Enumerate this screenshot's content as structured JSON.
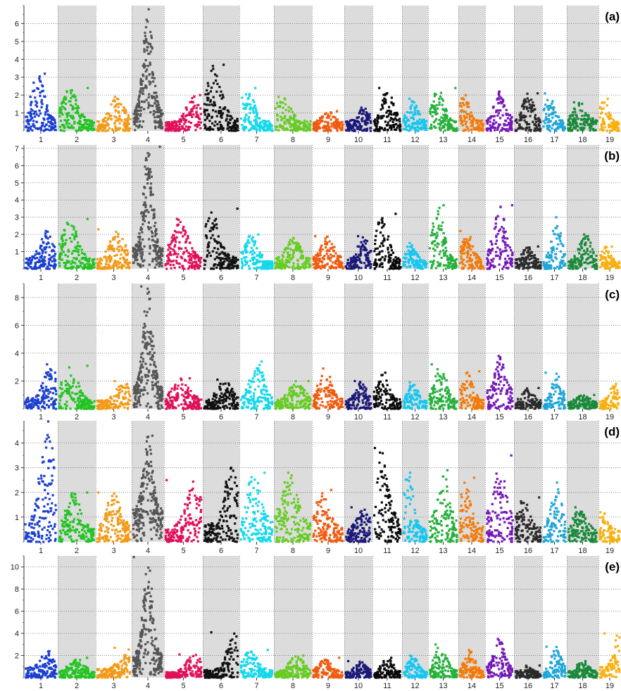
{
  "chart_data": [
    {
      "type": "scatter",
      "label": "(a)",
      "ylim": [
        0,
        7
      ],
      "yticks": [
        "1",
        "2",
        "3",
        "4",
        "5",
        "6"
      ],
      "chromosomes": [
        "1",
        "2",
        "3",
        "4",
        "5",
        "6",
        "7",
        "8",
        "9",
        "10",
        "11",
        "12",
        "13",
        "14",
        "15",
        "16",
        "17",
        "18",
        "19"
      ],
      "baseline": [
        0.6,
        0.55,
        0.55,
        1.1,
        0.5,
        0.7,
        0.55,
        0.55,
        0.45,
        0.55,
        0.65,
        0.55,
        0.55,
        0.6,
        0.7,
        0.6,
        0.55,
        0.6,
        0.55
      ],
      "peak_max": [
        3.2,
        2.4,
        1.9,
        6.8,
        2.0,
        3.7,
        2.4,
        1.9,
        1.1,
        1.3,
        2.4,
        1.8,
        2.4,
        2.0,
        2.2,
        2.1,
        2.1,
        1.6,
        1.8
      ],
      "peak_pos": [
        0.4,
        0.3,
        0.6,
        0.5,
        0.8,
        0.3,
        0.2,
        0.2,
        0.5,
        0.7,
        0.5,
        0.4,
        0.3,
        0.2,
        0.5,
        0.5,
        0.3,
        0.4,
        0.2
      ],
      "grid": true
    },
    {
      "type": "scatter",
      "label": "(b)",
      "ylim": [
        0,
        7.2
      ],
      "yticks": [
        "1",
        "2",
        "3",
        "4",
        "5",
        "6",
        "7"
      ],
      "chromosomes": [
        "1",
        "2",
        "3",
        "4",
        "5",
        "6",
        "7",
        "8",
        "9",
        "10",
        "11",
        "12",
        "13",
        "14",
        "15",
        "16",
        "17",
        "18",
        "19"
      ],
      "baseline": [
        0.6,
        0.55,
        0.55,
        1.2,
        0.7,
        0.7,
        0.5,
        0.5,
        0.6,
        0.55,
        0.6,
        0.5,
        0.6,
        0.6,
        0.8,
        0.5,
        0.55,
        0.5,
        0.5
      ],
      "peak_max": [
        2.2,
        2.9,
        2.3,
        7.1,
        2.9,
        3.5,
        2.0,
        1.8,
        1.9,
        1.9,
        3.2,
        1.5,
        3.7,
        2.2,
        3.7,
        1.3,
        3.0,
        2.0,
        1.3
      ],
      "peak_pos": [
        0.7,
        0.3,
        0.6,
        0.5,
        0.4,
        0.2,
        0.3,
        0.5,
        0.5,
        0.7,
        0.3,
        0.3,
        0.3,
        0.3,
        0.5,
        0.5,
        0.6,
        0.6,
        0.3
      ],
      "grid": true
    },
    {
      "type": "scatter",
      "label": "(c)",
      "ylim": [
        0,
        9
      ],
      "yticks": [
        "2",
        "4",
        "6",
        "8"
      ],
      "chromosomes": [
        "1",
        "2",
        "3",
        "4",
        "5",
        "6",
        "7",
        "8",
        "9",
        "10",
        "11",
        "12",
        "13",
        "14",
        "15",
        "16",
        "17",
        "18",
        "19"
      ],
      "baseline": [
        0.8,
        0.6,
        0.6,
        1.5,
        0.8,
        0.6,
        0.8,
        0.6,
        0.7,
        0.6,
        0.7,
        0.55,
        0.6,
        0.7,
        1.2,
        0.6,
        0.6,
        0.5,
        0.6
      ],
      "peak_max": [
        3.2,
        3.1,
        2.0,
        8.8,
        2.2,
        2.1,
        3.4,
        2.0,
        2.9,
        2.0,
        2.6,
        1.9,
        3.2,
        2.7,
        3.8,
        1.5,
        2.6,
        1.0,
        1.8
      ],
      "peak_pos": [
        0.8,
        0.3,
        0.8,
        0.5,
        0.4,
        0.6,
        0.5,
        0.6,
        0.4,
        0.6,
        0.3,
        0.4,
        0.4,
        0.3,
        0.5,
        0.5,
        0.6,
        0.5,
        0.7
      ],
      "grid": true
    },
    {
      "type": "scatter",
      "label": "(d)",
      "ylim": [
        0,
        4.9
      ],
      "yticks": [
        "1",
        "2",
        "3",
        "4"
      ],
      "chromosomes": [
        "1",
        "2",
        "3",
        "4",
        "5",
        "6",
        "7",
        "8",
        "9",
        "10",
        "11",
        "12",
        "13",
        "14",
        "15",
        "16",
        "17",
        "18",
        "19"
      ],
      "baseline": [
        0.8,
        0.5,
        0.6,
        1.3,
        0.6,
        0.7,
        0.9,
        0.8,
        0.6,
        0.6,
        1.0,
        0.6,
        0.7,
        0.7,
        1.0,
        0.6,
        0.7,
        0.5,
        0.5
      ],
      "peak_max": [
        4.9,
        2.0,
        2.0,
        4.3,
        2.5,
        3.0,
        2.8,
        2.8,
        2.1,
        1.4,
        3.8,
        2.8,
        2.9,
        2.6,
        3.5,
        1.8,
        2.4,
        1.4,
        1.2
      ],
      "peak_pos": [
        0.7,
        0.4,
        0.5,
        0.5,
        0.8,
        0.8,
        0.4,
        0.4,
        0.3,
        0.7,
        0.3,
        0.2,
        0.5,
        0.2,
        0.5,
        0.3,
        0.6,
        0.4,
        0.2
      ],
      "grid": true
    },
    {
      "type": "scatter",
      "label": "(e)",
      "ylim": [
        0,
        11
      ],
      "yticks": [
        "2",
        "4",
        "6",
        "8",
        "10"
      ],
      "chromosomes": [
        "1",
        "2",
        "3",
        "4",
        "5",
        "6",
        "7",
        "8",
        "9",
        "10",
        "11",
        "12",
        "13",
        "14",
        "15",
        "16",
        "17",
        "18",
        "19"
      ],
      "baseline": [
        0.9,
        0.5,
        0.8,
        2.0,
        0.5,
        0.7,
        0.7,
        0.5,
        0.5,
        0.5,
        0.5,
        0.5,
        0.6,
        0.6,
        0.8,
        0.5,
        0.8,
        0.5,
        1.0
      ],
      "peak_max": [
        2.4,
        1.8,
        2.7,
        10.9,
        2.1,
        4.1,
        2.5,
        2.0,
        1.8,
        1.5,
        1.8,
        2.0,
        3.0,
        2.5,
        3.5,
        1.1,
        2.8,
        1.5,
        4.0
      ],
      "peak_pos": [
        0.7,
        0.5,
        0.9,
        0.5,
        0.8,
        0.9,
        0.3,
        0.6,
        0.4,
        0.6,
        0.5,
        0.4,
        0.4,
        0.4,
        0.5,
        0.4,
        0.6,
        0.5,
        0.9
      ],
      "grid": true
    }
  ],
  "colors": {
    "chromosomes": [
      "#1a3fd1",
      "#22c422",
      "#f29a18",
      "#555555",
      "#e0105a",
      "#111111",
      "#14d8ec",
      "#66cc22",
      "#f05a0f",
      "#1b1878",
      "#0a0a0a",
      "#14c6f0",
      "#24b03a",
      "#f27a0a",
      "#7418b8",
      "#2a2a2a",
      "#1ea6d8",
      "#198a3a",
      "#f7b010"
    ],
    "shade": "#dcdcdc",
    "grid": "#707070"
  }
}
